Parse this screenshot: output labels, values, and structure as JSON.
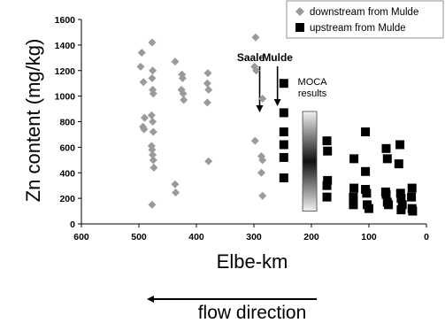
{
  "chart_data": {
    "type": "scatter",
    "xlabel": "Elbe-km",
    "ylabel": "Zn content (mg/kg)",
    "xlim": [
      600,
      0
    ],
    "ylim": [
      0,
      1600
    ],
    "x_reversed": true,
    "xticks": [
      600,
      500,
      400,
      300,
      200,
      100,
      0
    ],
    "yticks": [
      0,
      200,
      400,
      600,
      800,
      1000,
      1200,
      1400,
      1600
    ],
    "grid": false,
    "legend_position": "top-right",
    "series": [
      {
        "name": "downstream from Mulde",
        "marker": "diamond",
        "color": "#9a9a9a",
        "points": [
          [
            495,
            1340
          ],
          [
            497,
            1230
          ],
          [
            492,
            1110
          ],
          [
            490,
            830
          ],
          [
            493,
            760
          ],
          [
            491,
            740
          ],
          [
            477,
            1420
          ],
          [
            476,
            1200
          ],
          [
            477,
            1140
          ],
          [
            476,
            1050
          ],
          [
            475,
            1020
          ],
          [
            478,
            850
          ],
          [
            476,
            800
          ],
          [
            475,
            720
          ],
          [
            478,
            610
          ],
          [
            477,
            580
          ],
          [
            476,
            540
          ],
          [
            475,
            500
          ],
          [
            474,
            440
          ],
          [
            477,
            150
          ],
          [
            437,
            1270
          ],
          [
            437,
            310
          ],
          [
            436,
            245
          ],
          [
            425,
            1170
          ],
          [
            424,
            1140
          ],
          [
            426,
            1050
          ],
          [
            423,
            1020
          ],
          [
            422,
            970
          ],
          [
            380,
            1180
          ],
          [
            381,
            1100
          ],
          [
            379,
            1050
          ],
          [
            381,
            950
          ],
          [
            379,
            490
          ],
          [
            297,
            1460
          ],
          [
            299,
            1230
          ],
          [
            296,
            1200
          ],
          [
            298,
            650
          ],
          [
            285,
            980
          ],
          [
            287,
            530
          ],
          [
            285,
            500
          ],
          [
            287,
            400
          ],
          [
            285,
            220
          ]
        ]
      },
      {
        "name": "upstream from Mulde",
        "marker": "square",
        "color": "#000000",
        "points": [
          [
            248,
            1100
          ],
          [
            248,
            870
          ],
          [
            248,
            720
          ],
          [
            248,
            620
          ],
          [
            248,
            520
          ],
          [
            248,
            360
          ],
          [
            173,
            650
          ],
          [
            172,
            570
          ],
          [
            172,
            340
          ],
          [
            173,
            300
          ],
          [
            173,
            210
          ],
          [
            126,
            510
          ],
          [
            126,
            280
          ],
          [
            127,
            210
          ],
          [
            127,
            150
          ],
          [
            106,
            720
          ],
          [
            106,
            410
          ],
          [
            106,
            270
          ],
          [
            104,
            240
          ],
          [
            103,
            150
          ],
          [
            100,
            120
          ],
          [
            70,
            590
          ],
          [
            68,
            510
          ],
          [
            71,
            250
          ],
          [
            70,
            230
          ],
          [
            68,
            170
          ],
          [
            66,
            150
          ],
          [
            46,
            620
          ],
          [
            48,
            470
          ],
          [
            45,
            240
          ],
          [
            44,
            200
          ],
          [
            42,
            150
          ],
          [
            44,
            110
          ],
          [
            25,
            280
          ],
          [
            26,
            210
          ],
          [
            25,
            120
          ],
          [
            24,
            100
          ]
        ]
      }
    ],
    "annotations": {
      "saale": {
        "label": "Saale",
        "x": 290
      },
      "mulde": {
        "label": "Mulde",
        "x": 259
      },
      "moca": {
        "label_line1": "MOCA",
        "label_line2": "results",
        "x_center": 203,
        "y_range": [
          100,
          880
        ]
      }
    },
    "footer_label": "flow direction"
  },
  "colors": {
    "downstream": "#9a9a9a",
    "upstream": "#000000"
  }
}
